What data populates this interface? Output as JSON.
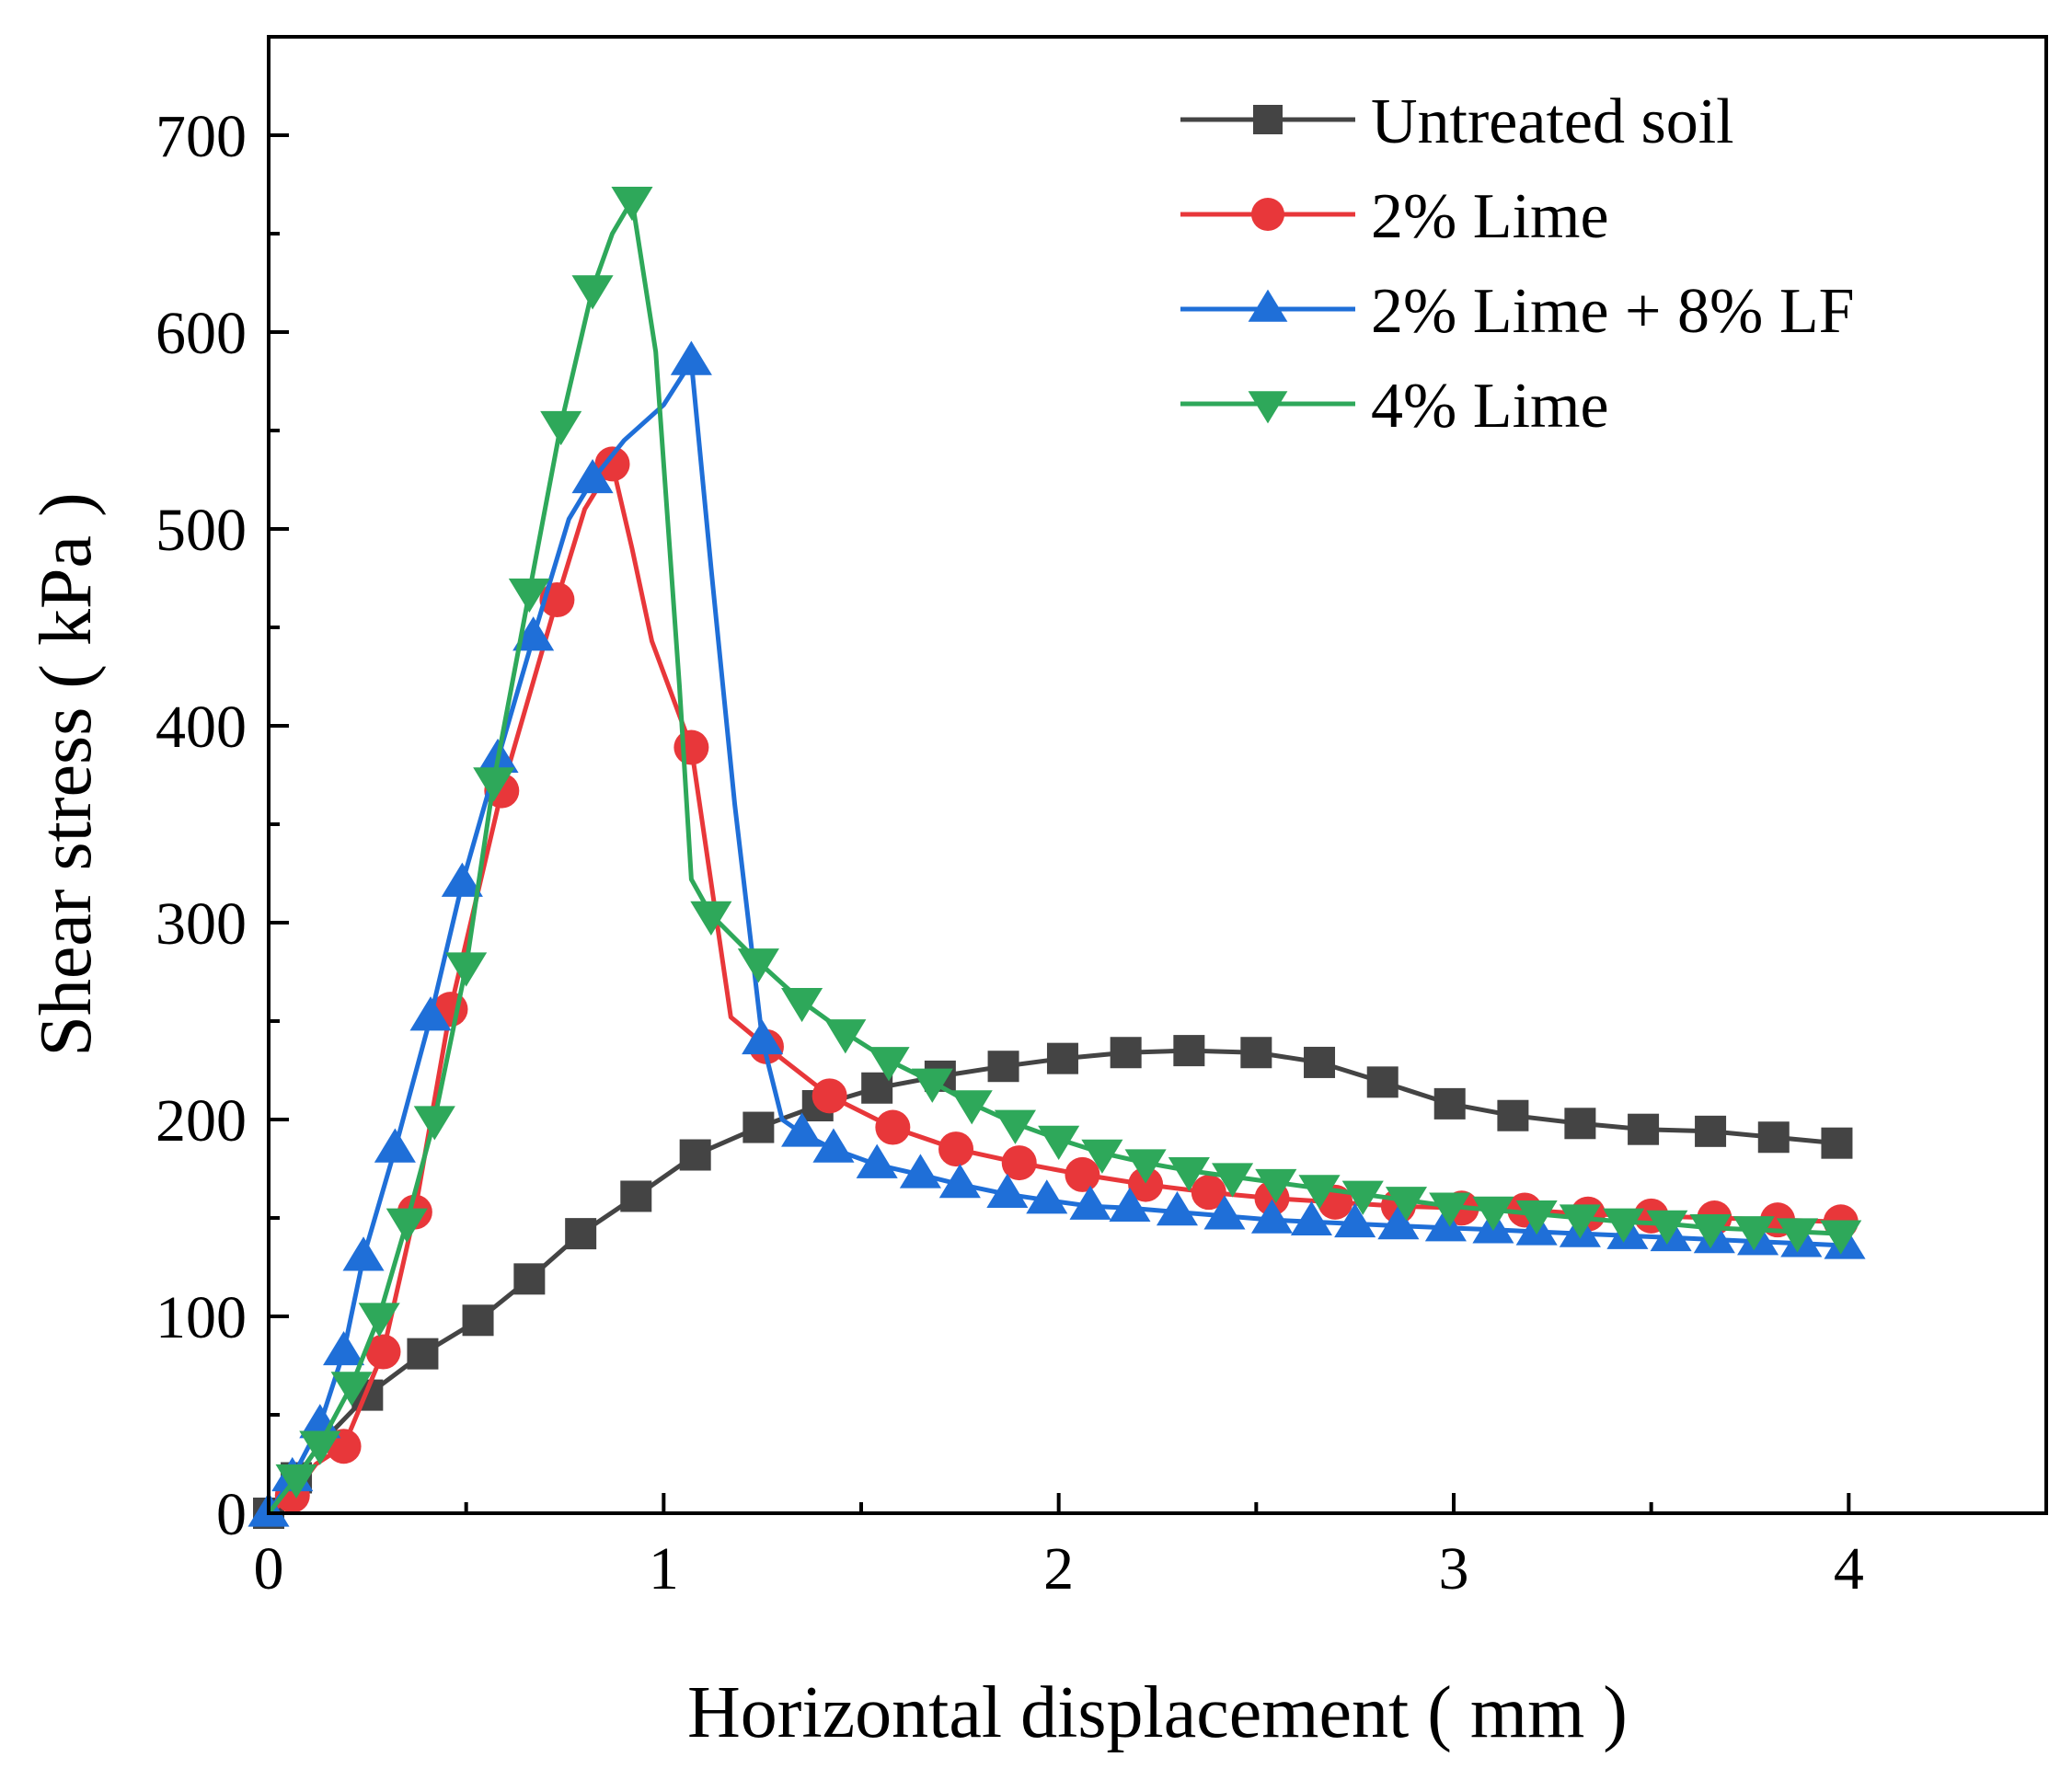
{
  "chart_data": {
    "type": "line",
    "title": "",
    "xlabel": "Horizontal displacement ( mm )",
    "ylabel": "Shear stress ( kPa )",
    "xlim": [
      0,
      4.5
    ],
    "ylim": [
      0,
      750
    ],
    "xticks": [
      0,
      1,
      2,
      3,
      4
    ],
    "yticks": [
      0,
      100,
      200,
      300,
      400,
      500,
      600,
      700
    ],
    "legend_position": "top-right",
    "series": [
      {
        "name": "Untreated soil",
        "color": "#444444",
        "marker": "square",
        "line": [
          [
            0,
            0
          ],
          [
            0.07,
            18
          ],
          [
            0.13,
            35
          ],
          [
            0.25,
            60
          ],
          [
            0.39,
            81
          ],
          [
            0.53,
            98
          ],
          [
            0.66,
            119
          ],
          [
            0.79,
            142
          ],
          [
            0.93,
            161
          ],
          [
            1.08,
            182
          ],
          [
            1.24,
            196
          ],
          [
            1.39,
            207
          ],
          [
            1.54,
            216
          ],
          [
            1.7,
            222
          ],
          [
            1.86,
            227
          ],
          [
            2.01,
            231
          ],
          [
            2.17,
            234
          ],
          [
            2.33,
            235
          ],
          [
            2.5,
            234
          ],
          [
            2.66,
            229
          ],
          [
            2.82,
            219
          ],
          [
            2.99,
            208
          ],
          [
            3.15,
            202
          ],
          [
            3.32,
            198
          ],
          [
            3.48,
            195
          ],
          [
            3.65,
            194
          ],
          [
            3.81,
            191
          ],
          [
            3.97,
            188
          ]
        ],
        "markers": [
          [
            0,
            0
          ],
          [
            0.07,
            18
          ],
          [
            0.25,
            60
          ],
          [
            0.39,
            81
          ],
          [
            0.53,
            98
          ],
          [
            0.66,
            119
          ],
          [
            0.79,
            142
          ],
          [
            0.93,
            161
          ],
          [
            1.08,
            182
          ],
          [
            1.24,
            196
          ],
          [
            1.39,
            207
          ],
          [
            1.54,
            216
          ],
          [
            1.7,
            222
          ],
          [
            1.86,
            227
          ],
          [
            2.01,
            231
          ],
          [
            2.17,
            234
          ],
          [
            2.33,
            235
          ],
          [
            2.5,
            234
          ],
          [
            2.66,
            229
          ],
          [
            2.82,
            219
          ],
          [
            2.99,
            208
          ],
          [
            3.15,
            202
          ],
          [
            3.32,
            198
          ],
          [
            3.48,
            195
          ],
          [
            3.65,
            194
          ],
          [
            3.81,
            191
          ],
          [
            3.97,
            188
          ]
        ]
      },
      {
        "name": "2% Lime",
        "color": "#e8373a",
        "marker": "circle",
        "line": [
          [
            0,
            0
          ],
          [
            0.06,
            9
          ],
          [
            0.12,
            25
          ],
          [
            0.19,
            34
          ],
          [
            0.29,
            82
          ],
          [
            0.37,
            153
          ],
          [
            0.46,
            256
          ],
          [
            0.59,
            367
          ],
          [
            0.73,
            464
          ],
          [
            0.8,
            510
          ],
          [
            0.87,
            533
          ],
          [
            0.92,
            490
          ],
          [
            0.97,
            443
          ],
          [
            1.07,
            389
          ],
          [
            1.17,
            252
          ],
          [
            1.26,
            237
          ],
          [
            1.42,
            212
          ],
          [
            1.58,
            196
          ],
          [
            1.74,
            185
          ],
          [
            1.9,
            178
          ],
          [
            2.06,
            172
          ],
          [
            2.22,
            167
          ],
          [
            2.38,
            163
          ],
          [
            2.54,
            160
          ],
          [
            2.7,
            158
          ],
          [
            2.86,
            156
          ],
          [
            3.02,
            155
          ],
          [
            3.18,
            154
          ],
          [
            3.34,
            152
          ],
          [
            3.5,
            151
          ],
          [
            3.66,
            150
          ],
          [
            3.82,
            149
          ],
          [
            3.98,
            148
          ]
        ],
        "markers": [
          [
            0.06,
            9
          ],
          [
            0.19,
            34
          ],
          [
            0.29,
            82
          ],
          [
            0.37,
            153
          ],
          [
            0.46,
            256
          ],
          [
            0.59,
            367
          ],
          [
            0.73,
            464
          ],
          [
            0.87,
            533
          ],
          [
            1.07,
            389
          ],
          [
            1.26,
            237
          ],
          [
            1.42,
            212
          ],
          [
            1.58,
            196
          ],
          [
            1.74,
            185
          ],
          [
            1.9,
            178
          ],
          [
            2.06,
            172
          ],
          [
            2.22,
            167
          ],
          [
            2.38,
            163
          ],
          [
            2.54,
            160
          ],
          [
            2.7,
            158
          ],
          [
            2.86,
            156
          ],
          [
            3.02,
            155
          ],
          [
            3.18,
            154
          ],
          [
            3.34,
            152
          ],
          [
            3.5,
            151
          ],
          [
            3.66,
            150
          ],
          [
            3.82,
            149
          ],
          [
            3.98,
            148
          ]
        ]
      },
      {
        "name": "2% Lime + 8% LF",
        "color": "#1f6fd8",
        "marker": "triangle-up",
        "line": [
          [
            0,
            0
          ],
          [
            0.06,
            18
          ],
          [
            0.13,
            45
          ],
          [
            0.19,
            82
          ],
          [
            0.24,
            130
          ],
          [
            0.32,
            185
          ],
          [
            0.41,
            252
          ],
          [
            0.49,
            320
          ],
          [
            0.58,
            383
          ],
          [
            0.67,
            445
          ],
          [
            0.76,
            505
          ],
          [
            0.82,
            525
          ],
          [
            0.9,
            545
          ],
          [
            1.0,
            563
          ],
          [
            1.07,
            585
          ],
          [
            1.12,
            480
          ],
          [
            1.18,
            360
          ],
          [
            1.25,
            240
          ],
          [
            1.3,
            200
          ],
          [
            1.35,
            193
          ],
          [
            1.43,
            185
          ],
          [
            1.54,
            177
          ],
          [
            1.65,
            172
          ],
          [
            1.75,
            167
          ],
          [
            1.87,
            162
          ],
          [
            1.97,
            159
          ],
          [
            2.08,
            156
          ],
          [
            2.18,
            155
          ],
          [
            2.3,
            153
          ],
          [
            2.42,
            151
          ],
          [
            2.54,
            149
          ],
          [
            2.64,
            148
          ],
          [
            2.75,
            147
          ],
          [
            2.86,
            146
          ],
          [
            2.98,
            145
          ],
          [
            3.1,
            144
          ],
          [
            3.21,
            143
          ],
          [
            3.32,
            142
          ],
          [
            3.44,
            141
          ],
          [
            3.55,
            140
          ],
          [
            3.66,
            139
          ],
          [
            3.77,
            138
          ],
          [
            3.88,
            137
          ],
          [
            3.99,
            136
          ]
        ],
        "markers": [
          [
            0,
            0
          ],
          [
            0.06,
            18
          ],
          [
            0.13,
            45
          ],
          [
            0.19,
            82
          ],
          [
            0.24,
            130
          ],
          [
            0.32,
            185
          ],
          [
            0.41,
            252
          ],
          [
            0.49,
            320
          ],
          [
            0.58,
            383
          ],
          [
            0.67,
            445
          ],
          [
            0.82,
            525
          ],
          [
            1.07,
            585
          ],
          [
            1.25,
            240
          ],
          [
            1.35,
            193
          ],
          [
            1.43,
            185
          ],
          [
            1.54,
            177
          ],
          [
            1.65,
            172
          ],
          [
            1.75,
            167
          ],
          [
            1.87,
            162
          ],
          [
            1.97,
            159
          ],
          [
            2.08,
            156
          ],
          [
            2.18,
            155
          ],
          [
            2.3,
            153
          ],
          [
            2.42,
            151
          ],
          [
            2.54,
            149
          ],
          [
            2.64,
            148
          ],
          [
            2.75,
            147
          ],
          [
            2.86,
            146
          ],
          [
            2.98,
            145
          ],
          [
            3.1,
            144
          ],
          [
            3.21,
            143
          ],
          [
            3.32,
            142
          ],
          [
            3.44,
            141
          ],
          [
            3.55,
            140
          ],
          [
            3.66,
            139
          ],
          [
            3.77,
            138
          ],
          [
            3.88,
            137
          ],
          [
            3.99,
            136
          ]
        ]
      },
      {
        "name": "4% Lime",
        "color": "#2ea85a",
        "marker": "triangle-down",
        "line": [
          [
            0,
            0
          ],
          [
            0.07,
            18
          ],
          [
            0.13,
            35
          ],
          [
            0.21,
            65
          ],
          [
            0.28,
            100
          ],
          [
            0.35,
            148
          ],
          [
            0.42,
            200
          ],
          [
            0.5,
            278
          ],
          [
            0.57,
            372
          ],
          [
            0.66,
            468
          ],
          [
            0.74,
            553
          ],
          [
            0.82,
            622
          ],
          [
            0.87,
            650
          ],
          [
            0.92,
            667
          ],
          [
            0.98,
            590
          ],
          [
            1.04,
            420
          ],
          [
            1.07,
            322
          ],
          [
            1.12,
            304
          ],
          [
            1.24,
            280
          ],
          [
            1.35,
            260
          ],
          [
            1.46,
            244
          ],
          [
            1.57,
            230
          ],
          [
            1.68,
            219
          ],
          [
            1.78,
            208
          ],
          [
            1.89,
            198
          ],
          [
            2.0,
            190
          ],
          [
            2.11,
            183
          ],
          [
            2.22,
            178
          ],
          [
            2.33,
            174
          ],
          [
            2.44,
            171
          ],
          [
            2.55,
            168
          ],
          [
            2.66,
            165
          ],
          [
            2.77,
            162
          ],
          [
            2.88,
            159
          ],
          [
            2.99,
            156
          ],
          [
            3.1,
            154
          ],
          [
            3.21,
            152
          ],
          [
            3.32,
            150
          ],
          [
            3.43,
            148
          ],
          [
            3.54,
            147
          ],
          [
            3.65,
            145
          ],
          [
            3.76,
            144
          ],
          [
            3.87,
            143
          ],
          [
            3.98,
            142
          ]
        ],
        "markers": [
          [
            0.07,
            18
          ],
          [
            0.13,
            35
          ],
          [
            0.21,
            65
          ],
          [
            0.28,
            100
          ],
          [
            0.35,
            148
          ],
          [
            0.42,
            200
          ],
          [
            0.5,
            278
          ],
          [
            0.57,
            372
          ],
          [
            0.66,
            468
          ],
          [
            0.74,
            553
          ],
          [
            0.82,
            622
          ],
          [
            0.92,
            667
          ],
          [
            1.12,
            304
          ],
          [
            1.24,
            280
          ],
          [
            1.35,
            260
          ],
          [
            1.46,
            244
          ],
          [
            1.57,
            230
          ],
          [
            1.68,
            219
          ],
          [
            1.78,
            208
          ],
          [
            1.89,
            198
          ],
          [
            2.0,
            190
          ],
          [
            2.11,
            183
          ],
          [
            2.22,
            178
          ],
          [
            2.33,
            174
          ],
          [
            2.44,
            171
          ],
          [
            2.55,
            168
          ],
          [
            2.66,
            165
          ],
          [
            2.77,
            162
          ],
          [
            2.88,
            159
          ],
          [
            2.99,
            156
          ],
          [
            3.1,
            154
          ],
          [
            3.21,
            152
          ],
          [
            3.32,
            150
          ],
          [
            3.43,
            148
          ],
          [
            3.54,
            147
          ],
          [
            3.65,
            145
          ],
          [
            3.76,
            144
          ],
          [
            3.87,
            143
          ],
          [
            3.98,
            142
          ]
        ]
      }
    ]
  }
}
